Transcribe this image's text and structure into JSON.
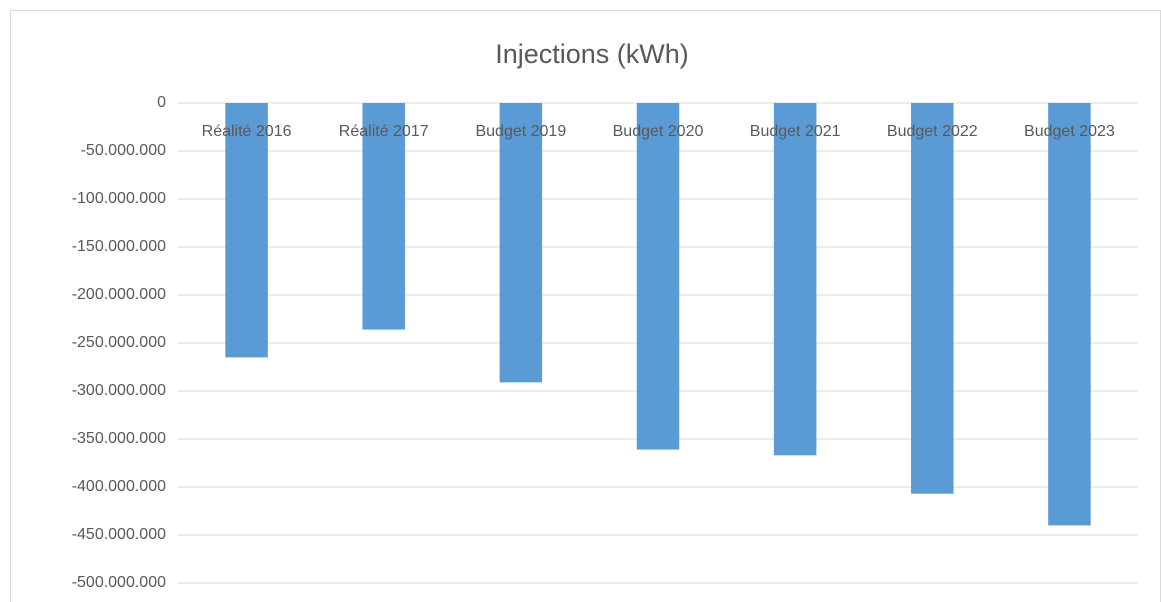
{
  "chart_data": {
    "type": "bar",
    "title": "Injections (kWh)",
    "categories": [
      "Réalité 2016",
      "Réalité 2017",
      "Budget 2019",
      "Budget 2020",
      "Budget 2021",
      "Budget 2022",
      "Budget 2023"
    ],
    "values": [
      -265000000,
      -236000000,
      -291000000,
      -361000000,
      -367000000,
      -407000000,
      -440000000
    ],
    "color": "#5b9bd5",
    "ylim": [
      -500000000,
      0
    ],
    "yticks": [
      0,
      {
        "value": -50000000,
        "label": "-50.000.000"
      },
      {
        "value": -100000000,
        "label": "-100.000.000"
      },
      {
        "value": -150000000,
        "label": "-150.000.000"
      },
      {
        "value": -200000000,
        "label": "-200.000.000"
      },
      {
        "value": -250000000,
        "label": "-250.000.000"
      },
      {
        "value": -300000000,
        "label": "-300.000.000"
      },
      {
        "value": -350000000,
        "label": "-350.000.000"
      },
      {
        "value": -400000000,
        "label": "-400.000.000"
      },
      {
        "value": -450000000,
        "label": "-450.000.000"
      },
      {
        "value": -500000000,
        "label": "-500.000.000"
      }
    ],
    "grid": true
  }
}
